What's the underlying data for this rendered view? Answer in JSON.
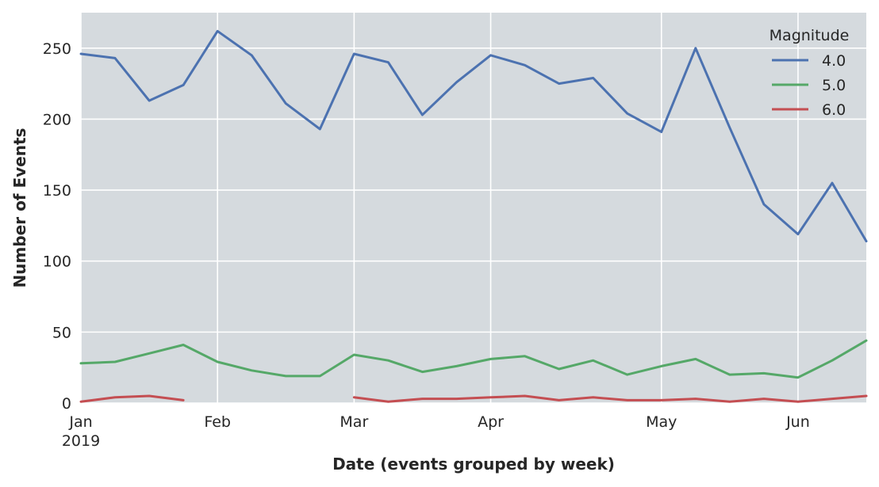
{
  "chart_data": {
    "type": "line",
    "xlabel": "Date (events grouped by week)",
    "ylabel": "Number of Events",
    "x": [
      "2019-01-06",
      "2019-01-13",
      "2019-01-20",
      "2019-01-27",
      "2019-02-03",
      "2019-02-10",
      "2019-02-17",
      "2019-02-24",
      "2019-03-03",
      "2019-03-10",
      "2019-03-17",
      "2019-03-24",
      "2019-03-31",
      "2019-04-07",
      "2019-04-14",
      "2019-04-21",
      "2019-04-28",
      "2019-05-05",
      "2019-05-12",
      "2019-05-19",
      "2019-05-26",
      "2019-06-02",
      "2019-06-09",
      "2019-06-16"
    ],
    "xlim": [
      "2019-01-06",
      "2019-06-16"
    ],
    "ylim": [
      0,
      275
    ],
    "y_ticks": [
      0,
      50,
      100,
      150,
      200,
      250
    ],
    "x_ticks": [
      {
        "date": "2019-01-06",
        "label": "Jan",
        "sublabel": "2019"
      },
      {
        "date": "2019-02-03",
        "label": "Feb"
      },
      {
        "date": "2019-03-03",
        "label": "Mar"
      },
      {
        "date": "2019-03-31",
        "label": "Apr"
      },
      {
        "date": "2019-05-05",
        "label": "May"
      },
      {
        "date": "2019-06-02",
        "label": "Jun"
      }
    ],
    "grid": true,
    "background": "#d5dade",
    "legend": {
      "title": "Magnitude",
      "placement": "top-right"
    },
    "series": [
      {
        "name": "4.0",
        "color": "#4c72b0",
        "values": [
          246,
          243,
          213,
          224,
          262,
          245,
          211,
          193,
          246,
          240,
          203,
          226,
          245,
          238,
          225,
          229,
          204,
          191,
          250,
          194,
          140,
          119,
          155,
          114
        ]
      },
      {
        "name": "5.0",
        "color": "#55a868",
        "values": [
          28,
          29,
          35,
          41,
          29,
          23,
          19,
          19,
          34,
          30,
          22,
          26,
          31,
          33,
          24,
          30,
          20,
          26,
          31,
          20,
          21,
          18,
          30,
          44
        ]
      },
      {
        "name": "6.0",
        "color": "#c44e52",
        "values": [
          1,
          4,
          5,
          2,
          null,
          null,
          null,
          null,
          4,
          1,
          3,
          3,
          4,
          5,
          2,
          4,
          2,
          2,
          3,
          1,
          3,
          1,
          3,
          5
        ]
      }
    ]
  }
}
